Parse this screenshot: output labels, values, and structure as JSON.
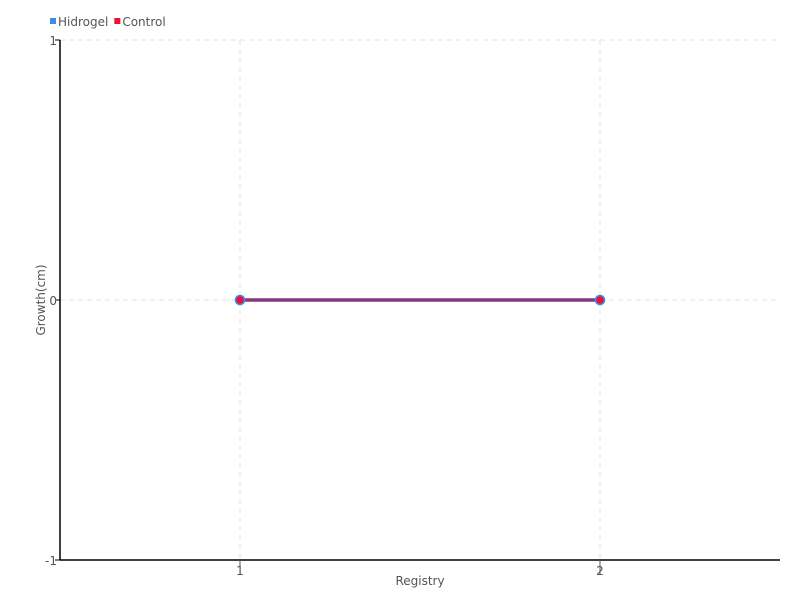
{
  "chart_data": {
    "type": "line",
    "title": "",
    "xlabel": "Registry",
    "ylabel": "Growth(cm)",
    "xlim": [
      0.5,
      2.5
    ],
    "ylim": [
      -1,
      1
    ],
    "x_ticks": [
      1,
      2
    ],
    "y_ticks": [
      -1,
      0,
      1
    ],
    "grid": true,
    "legend_position": "top-left",
    "series": [
      {
        "name": "Hidrogel",
        "color": "#3a8ee6",
        "x": [
          1,
          2
        ],
        "y": [
          0,
          0
        ]
      },
      {
        "name": "Control",
        "color": "#ee1133",
        "x": [
          1,
          2
        ],
        "y": [
          0,
          0
        ]
      }
    ]
  }
}
